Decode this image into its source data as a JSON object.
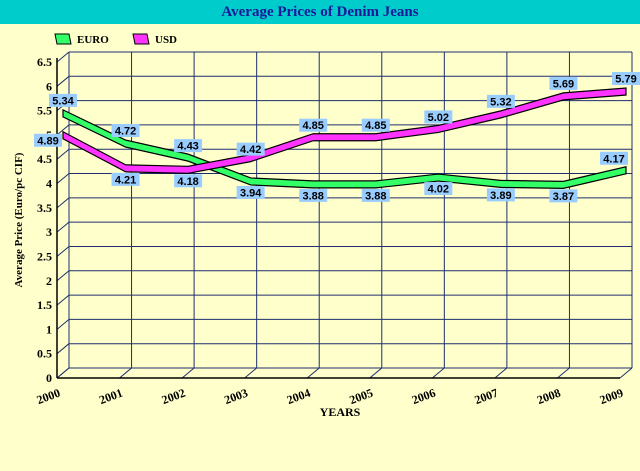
{
  "chart_data": {
    "type": "line",
    "title": "Average Prices of Denim Jeans",
    "xlabel": "YEARS",
    "ylabel": "Average Price (Euro/pc CIF)",
    "categories": [
      "2000",
      "2001",
      "2002",
      "2003",
      "2004",
      "2005",
      "2006",
      "2007",
      "2008",
      "2009"
    ],
    "y_ticks": [
      "0",
      "0.5",
      "1",
      "1.5",
      "2",
      "2.5",
      "3",
      "3.5",
      "4",
      "4.5",
      "5",
      "5.5",
      "6",
      "6.5"
    ],
    "ylim": [
      0,
      6.5
    ],
    "grid": true,
    "legend_position": "top-left",
    "series": [
      {
        "name": "EURO",
        "color": "#33ff66",
        "values": [
          5.34,
          4.72,
          4.43,
          3.94,
          3.88,
          3.88,
          4.02,
          3.89,
          3.87,
          4.17
        ],
        "labels": [
          "5.34",
          "4.72",
          "4.43",
          "3.94",
          "3.88",
          "3.88",
          "4.02",
          "3.89",
          "3.87",
          "4.17"
        ]
      },
      {
        "name": "USD",
        "color": "#ff33ff",
        "values": [
          4.89,
          4.21,
          4.18,
          4.42,
          4.85,
          4.85,
          5.02,
          5.32,
          5.69,
          5.79
        ],
        "labels": [
          "4.89",
          "4.21",
          "4.18",
          "4.42",
          "4.85",
          "4.85",
          "5.02",
          "5.32",
          "5.69",
          "5.79"
        ]
      }
    ],
    "label_box_color": "#99ccff",
    "background_color": "#ffffcc",
    "title_bar_color": "#00cccc",
    "title_color": "#1a1a99"
  }
}
